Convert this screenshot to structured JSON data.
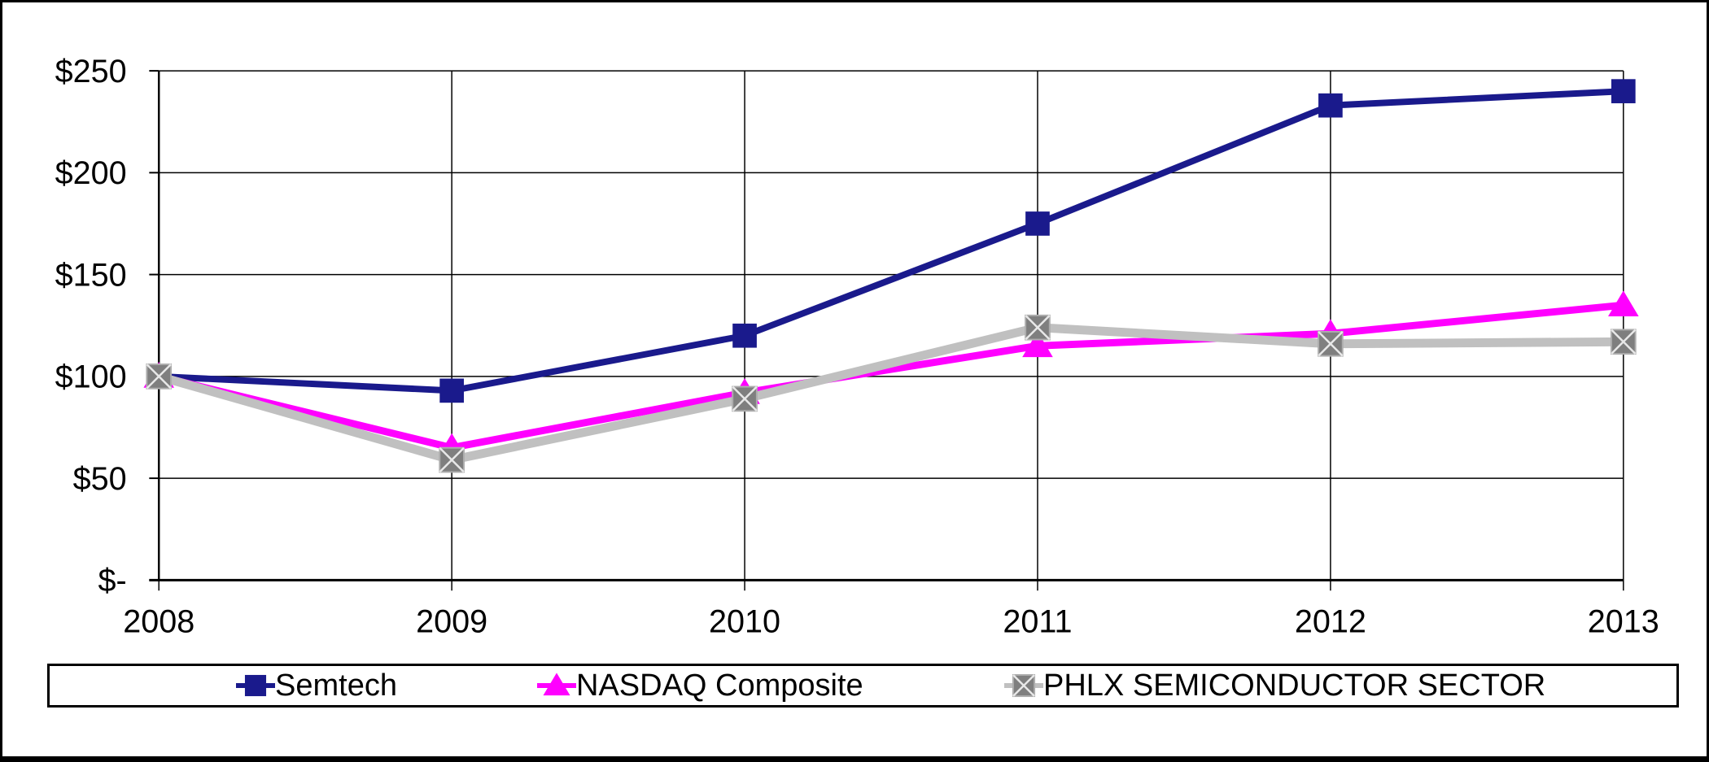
{
  "chart_data": {
    "type": "line",
    "categories": [
      "2008",
      "2009",
      "2010",
      "2011",
      "2012",
      "2013"
    ],
    "series": [
      {
        "name": "Semtech",
        "values": [
          100,
          93,
          120,
          175,
          233,
          240
        ],
        "color": "#1A1A8C",
        "marker": "square"
      },
      {
        "name": "NASDAQ Composite",
        "values": [
          100,
          65,
          92,
          115,
          121,
          135
        ],
        "color": "#FF00FF",
        "marker": "triangle"
      },
      {
        "name": "PHLX SEMICONDUCTOR SECTOR",
        "values": [
          100,
          59,
          89,
          124,
          116,
          117
        ],
        "color": "#C0C0C0",
        "marker": "square-x",
        "marker_fill": "#7F7F7F",
        "marker_cross_color": "#E8E8E8"
      }
    ],
    "y_axis": {
      "min": 0,
      "max": 250,
      "tick_values": [
        0,
        50,
        100,
        150,
        200,
        250
      ],
      "tick_labels": [
        "$-",
        "$50",
        "$100",
        "$150",
        "$200",
        "$250"
      ]
    },
    "x_axis": {
      "labels": [
        "2008",
        "2009",
        "2010",
        "2011",
        "2012",
        "2013"
      ]
    },
    "grid": true,
    "legend_position": "bottom"
  },
  "legend": {
    "items": [
      "Semtech",
      "NASDAQ Composite",
      "PHLX SEMICONDUCTOR SECTOR"
    ]
  }
}
